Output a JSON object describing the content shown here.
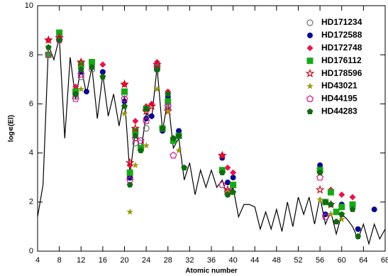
{
  "chart_data": {
    "type": "scatter",
    "xlabel": "Atomic number",
    "ylabel": "log∊(El)",
    "xlim": [
      4,
      68
    ],
    "xticks": [
      4,
      8,
      12,
      16,
      20,
      24,
      28,
      32,
      36,
      40,
      44,
      48,
      52,
      56,
      60,
      64,
      68
    ],
    "ylim": [
      0,
      10
    ],
    "yticks": [
      0,
      2,
      4,
      6,
      8,
      10
    ],
    "legend": "top-right",
    "line": {
      "color": "#000000",
      "x": [
        4,
        5,
        6,
        7,
        8,
        9,
        10,
        11,
        12,
        13,
        14,
        15,
        16,
        17,
        18,
        19,
        20,
        21,
        22,
        23,
        24,
        25,
        26,
        27,
        28,
        29,
        30,
        31,
        32,
        33,
        34,
        35,
        36,
        37,
        38,
        39,
        40,
        41,
        42,
        43,
        44,
        45,
        46,
        47,
        48,
        49,
        50,
        51,
        52,
        53,
        54,
        55,
        56,
        57,
        58,
        59,
        60,
        61,
        62,
        63,
        64,
        65,
        66,
        67,
        68
      ],
      "y": [
        1.4,
        2.7,
        8.4,
        7.8,
        8.7,
        4.6,
        7.9,
        6.2,
        7.5,
        6.4,
        7.5,
        5.4,
        7.2,
        5.5,
        6.4,
        5.1,
        6.3,
        3.1,
        4.9,
        4.0,
        5.6,
        5.4,
        7.5,
        4.9,
        6.2,
        4.2,
        4.6,
        2.9,
        3.6,
        2.3,
        3.3,
        2.6,
        3.3,
        2.6,
        2.9,
        2.2,
        2.6,
        1.4,
        1.9,
        1.9,
        1.8,
        0.9,
        1.6,
        0.9,
        1.7,
        0.8,
        2.0,
        1.0,
        2.2,
        1.5,
        2.2,
        1.1,
        2.2,
        1.1,
        1.6,
        0.7,
        1.5,
        1.3,
        1.0,
        0.5,
        1.1,
        0.3,
        1.1,
        0.5,
        0.9
      ]
    },
    "series": [
      {
        "name": "HD171234",
        "color": "#707070",
        "marker": "circle-open",
        "x": [
          6,
          8,
          11,
          12,
          14,
          20,
          21,
          22,
          23,
          24,
          26,
          28
        ],
        "y": [
          8.0,
          8.6,
          6.3,
          7.1,
          7.4,
          6.4,
          3.0,
          4.4,
          4.4,
          5.0,
          7.4,
          5.8
        ]
      },
      {
        "name": "HD172588",
        "color": "#0a0a8c",
        "marker": "circle",
        "x": [
          6,
          8,
          11,
          12,
          13,
          14,
          16,
          20,
          21,
          22,
          23,
          24,
          25,
          26,
          27,
          28,
          29,
          30,
          38,
          39,
          40,
          56,
          57,
          58,
          60,
          63,
          66
        ],
        "y": [
          8.0,
          8.6,
          6.4,
          7.3,
          6.5,
          7.5,
          7.3,
          6.1,
          3.0,
          4.8,
          4.2,
          5.4,
          5.5,
          7.4,
          4.9,
          6.3,
          4.5,
          4.9,
          3.8,
          2.8,
          3.0,
          3.5,
          1.5,
          1.9,
          1.9,
          0.9,
          1.7
        ]
      },
      {
        "name": "HD172748",
        "color": "#e8144a",
        "marker": "diamond",
        "x": [
          6,
          8,
          11,
          12,
          14,
          16,
          20,
          21,
          22,
          24,
          25,
          26,
          28,
          30,
          38,
          39,
          40,
          56,
          57,
          58,
          60,
          62
        ],
        "y": [
          8.6,
          8.7,
          6.7,
          7.7,
          7.7,
          7.6,
          6.8,
          3.5,
          5.3,
          5.9,
          6.0,
          7.7,
          6.5,
          4.7,
          3.9,
          3.4,
          3.2,
          3.2,
          2.0,
          2.5,
          2.3,
          2.2
        ]
      },
      {
        "name": "HD176112",
        "color": "#18a818",
        "marker": "square",
        "x": [
          6,
          8,
          11,
          12,
          14,
          20,
          21,
          22,
          23,
          24,
          26,
          27,
          28,
          29,
          30,
          38,
          39,
          40,
          56,
          57,
          58,
          59,
          60,
          62
        ],
        "y": [
          8.0,
          8.9,
          6.5,
          7.6,
          7.7,
          6.5,
          3.2,
          4.9,
          4.2,
          5.8,
          7.5,
          5.0,
          6.1,
          4.5,
          4.7,
          3.3,
          2.4,
          2.7,
          3.3,
          2.0,
          2.4,
          1.6,
          1.8,
          1.9
        ]
      },
      {
        "name": "HD178596",
        "color": "#c80a1e",
        "marker": "star-open",
        "x": [
          6,
          8,
          12,
          20,
          21,
          22,
          24,
          25,
          26,
          28,
          38,
          39,
          56,
          58
        ],
        "y": [
          8.6,
          8.7,
          7.7,
          6.8,
          3.6,
          5.0,
          5.7,
          5.9,
          7.6,
          5.7,
          3.9,
          2.5,
          2.5,
          1.9
        ]
      },
      {
        "name": "HD43021",
        "color": "#9a9a14",
        "marker": "star",
        "x": [
          12,
          14,
          16,
          20,
          21,
          22,
          24,
          26,
          28,
          30,
          38,
          39,
          56,
          58,
          60,
          63
        ],
        "y": [
          6.6,
          7.5,
          7.1,
          5.6,
          1.6,
          3.5,
          4.3,
          6.6,
          5.7,
          4.1,
          3.2,
          2.4,
          2.1,
          1.5,
          1.3,
          0.6
        ]
      },
      {
        "name": "HD44195",
        "color": "#d8148a",
        "marker": "pentagon-open",
        "x": [
          6,
          8,
          11,
          12,
          20,
          21,
          22,
          23,
          24,
          26,
          28,
          29,
          38,
          39,
          56,
          57
        ],
        "y": [
          8.0,
          8.6,
          6.2,
          7.2,
          6.2,
          2.9,
          4.6,
          4.5,
          5.3,
          7.5,
          5.9,
          3.9,
          2.7,
          2.4,
          3.0,
          1.4
        ]
      },
      {
        "name": "HD44283",
        "color": "#126a12",
        "marker": "pentagon",
        "x": [
          6,
          8,
          11,
          12,
          14,
          16,
          20,
          21,
          22,
          23,
          24,
          26,
          27,
          28,
          29,
          30,
          31,
          38,
          39,
          40,
          56,
          57,
          58,
          59,
          60,
          62,
          63
        ],
        "y": [
          8.3,
          8.6,
          6.4,
          7.4,
          7.5,
          7.1,
          5.9,
          2.7,
          4.7,
          4.1,
          5.8,
          7.4,
          5.0,
          6.4,
          4.6,
          4.7,
          3.4,
          3.2,
          2.3,
          2.4,
          3.2,
          2.0,
          1.9,
          1.2,
          1.5,
          1.7,
          0.6
        ]
      }
    ]
  }
}
